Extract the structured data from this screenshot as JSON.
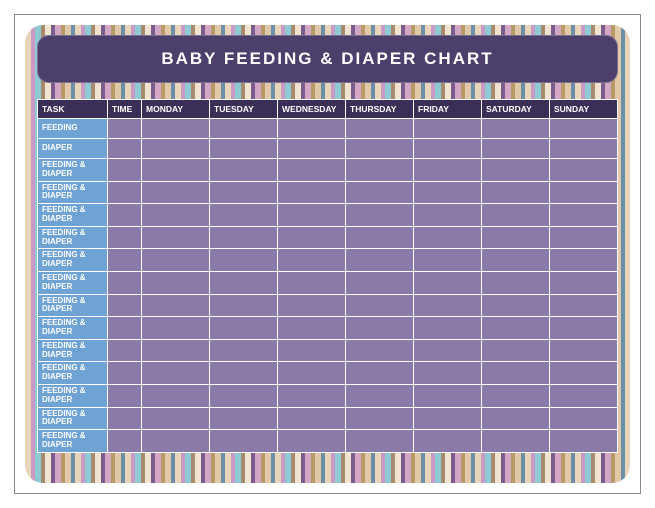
{
  "title": "BABY FEEDING & DIAPER CHART",
  "columns": [
    "TASK",
    "TIME",
    "MONDAY",
    "TUESDAY",
    "WEDNESDAY",
    "THURSDAY",
    "FRIDAY",
    "SATURDAY",
    "SUNDAY"
  ],
  "rows": [
    {
      "task": "FEEDING"
    },
    {
      "task": "DIAPER"
    },
    {
      "task": "FEEDING & DIAPER"
    },
    {
      "task": "FEEDING & DIAPER"
    },
    {
      "task": "FEEDING & DIAPER"
    },
    {
      "task": "FEEDING & DIAPER"
    },
    {
      "task": "FEEDING & DIAPER"
    },
    {
      "task": "FEEDING & DIAPER"
    },
    {
      "task": "FEEDING & DIAPER"
    },
    {
      "task": "FEEDING & DIAPER"
    },
    {
      "task": "FEEDING & DIAPER"
    },
    {
      "task": "FEEDING & DIAPER"
    },
    {
      "task": "FEEDING & DIAPER"
    },
    {
      "task": "FEEDING & DIAPER"
    },
    {
      "task": "FEEDING & DIAPER"
    }
  ],
  "colors": {
    "page_bg": "#ffffff",
    "title_bg": "#4d3f6b",
    "header_bg": "#3c2f57",
    "task_col_bg": "#6fa3d4",
    "data_col_bg": "#8b7ba8",
    "border": "#ffffff"
  }
}
